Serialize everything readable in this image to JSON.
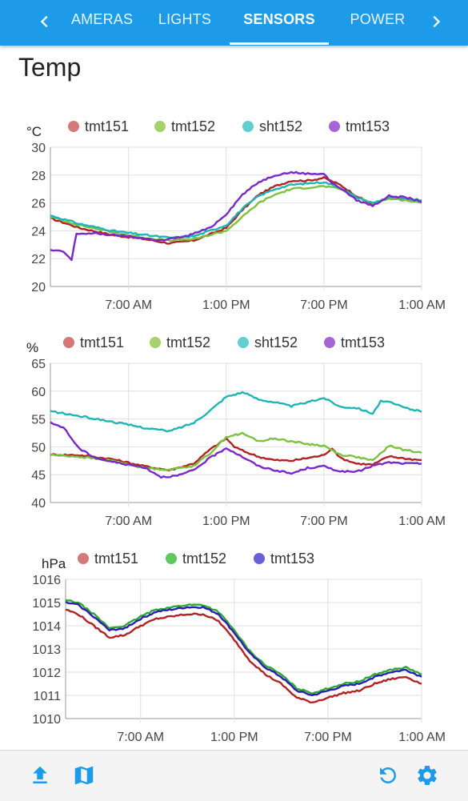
{
  "tabs": {
    "items": [
      "CAMERAS",
      "LIGHTS",
      "SENSORS",
      "POWER"
    ],
    "active_index": 2
  },
  "page": {
    "title": "Temp"
  },
  "colors": {
    "tab_bar": "#1e9be8",
    "icon": "#1e9be8",
    "tmt151": "#d47878",
    "tmt151_line": "#b22222",
    "tmt152": "#a6d16c",
    "tmt152_line": "#7cc13f",
    "sht152": "#5fcfcf",
    "sht152_line": "#1fb5b5",
    "tmt153": "#a565d6",
    "tmt153_line": "#7a28c8",
    "tmt152_pressure": "#5dc85d",
    "tmt152_pressure_line": "#2ea832",
    "tmt153_pressure": "#6b5fd6",
    "tmt153_pressure_line": "#2a1fb0"
  },
  "bottom_bar": {
    "left_icons": [
      "upload-icon",
      "map-icon"
    ],
    "right_icons": [
      "refresh-icon",
      "settings-icon"
    ]
  },
  "chart_data": [
    {
      "type": "line",
      "unit": "°C",
      "ylim": [
        20,
        30
      ],
      "yticks": [
        "30",
        "28",
        "26",
        "24",
        "22",
        "20"
      ],
      "xticks": [
        "7:00 AM",
        "1:00 PM",
        "7:00 PM",
        "1:00 AM"
      ],
      "x_hours": [
        2.2,
        7.0,
        13.0,
        19.0,
        1.0
      ],
      "grid": true,
      "legend_position": "top",
      "series": [
        {
          "name": "tmt151",
          "color_key": "tmt151",
          "points": [
            [
              2.2,
              24.9
            ],
            [
              4,
              24.2
            ],
            [
              6,
              23.7
            ],
            [
              8,
              23.4
            ],
            [
              9.5,
              23.1
            ],
            [
              11,
              23.3
            ],
            [
              13,
              24.2
            ],
            [
              14,
              25.5
            ],
            [
              15,
              26.6
            ],
            [
              16,
              27.2
            ],
            [
              17,
              27.6
            ],
            [
              18,
              27.6
            ],
            [
              19,
              27.8
            ],
            [
              20,
              27.3
            ],
            [
              21,
              26.5
            ],
            [
              22,
              25.9
            ],
            [
              23,
              26.4
            ],
            [
              24,
              26.3
            ],
            [
              25,
              26.0
            ]
          ]
        },
        {
          "name": "tmt152",
          "color_key": "tmt152",
          "points": [
            [
              2.2,
              25.0
            ],
            [
              4,
              24.4
            ],
            [
              6,
              23.9
            ],
            [
              8,
              23.5
            ],
            [
              9.5,
              23.3
            ],
            [
              11,
              23.4
            ],
            [
              13,
              24.0
            ],
            [
              14,
              25.0
            ],
            [
              15,
              26.0
            ],
            [
              16,
              26.6
            ],
            [
              17,
              27.0
            ],
            [
              18,
              27.1
            ],
            [
              19,
              27.2
            ],
            [
              20,
              27.0
            ],
            [
              21,
              26.4
            ],
            [
              22,
              26.0
            ],
            [
              23,
              26.3
            ],
            [
              24,
              26.2
            ],
            [
              25,
              26.0
            ]
          ]
        },
        {
          "name": "sht152",
          "color_key": "sht152",
          "points": [
            [
              2.2,
              25.1
            ],
            [
              4,
              24.5
            ],
            [
              6,
              24.0
            ],
            [
              8,
              23.7
            ],
            [
              9.5,
              23.5
            ],
            [
              11,
              23.6
            ],
            [
              13,
              24.4
            ],
            [
              14,
              25.6
            ],
            [
              15,
              26.5
            ],
            [
              16,
              27.0
            ],
            [
              17,
              27.3
            ],
            [
              18,
              27.4
            ],
            [
              19,
              27.5
            ],
            [
              20,
              27.1
            ],
            [
              21,
              26.4
            ],
            [
              22,
              26.0
            ],
            [
              23,
              26.4
            ],
            [
              24,
              26.3
            ],
            [
              25,
              26.2
            ]
          ]
        },
        {
          "name": "tmt153",
          "color_key": "tmt153",
          "points": [
            [
              2.2,
              22.6
            ],
            [
              3,
              22.5
            ],
            [
              3.5,
              21.9
            ],
            [
              3.8,
              23.8
            ],
            [
              5,
              23.8
            ],
            [
              7,
              23.6
            ],
            [
              9,
              23.3
            ],
            [
              10.5,
              23.6
            ],
            [
              12,
              24.2
            ],
            [
              13,
              25.2
            ],
            [
              14,
              26.6
            ],
            [
              15,
              27.5
            ],
            [
              16,
              28.0
            ],
            [
              17,
              28.2
            ],
            [
              18,
              28.1
            ],
            [
              19,
              28.1
            ],
            [
              19.5,
              27.4
            ],
            [
              20,
              27.1
            ],
            [
              21,
              26.2
            ],
            [
              22,
              25.8
            ],
            [
              23,
              26.5
            ],
            [
              24,
              26.4
            ],
            [
              25,
              26.1
            ]
          ]
        }
      ]
    },
    {
      "type": "line",
      "unit": "%",
      "ylim": [
        40,
        65
      ],
      "yticks": [
        "65",
        "60",
        "55",
        "50",
        "45",
        "40"
      ],
      "xticks": [
        "7:00 AM",
        "1:00 PM",
        "7:00 PM",
        "1:00 AM"
      ],
      "x_hours": [
        2.2,
        7.0,
        13.0,
        19.0,
        1.0
      ],
      "grid": true,
      "legend_position": "top",
      "series": [
        {
          "name": "tmt151",
          "color_key": "tmt151",
          "points": [
            [
              2.2,
              48.6
            ],
            [
              4,
              48.5
            ],
            [
              6,
              47.8
            ],
            [
              8,
              46.5
            ],
            [
              9.5,
              45.8
            ],
            [
              11,
              47.0
            ],
            [
              12,
              49.5
            ],
            [
              13,
              51.5
            ],
            [
              13.5,
              50.0
            ],
            [
              14,
              49.3
            ],
            [
              15,
              48.2
            ],
            [
              16,
              47.6
            ],
            [
              17,
              47.5
            ],
            [
              18,
              48.0
            ],
            [
              19,
              48.5
            ],
            [
              19.5,
              49.8
            ],
            [
              20,
              48.0
            ],
            [
              21,
              47.0
            ],
            [
              22,
              46.8
            ],
            [
              23,
              48.3
            ],
            [
              24,
              47.9
            ],
            [
              25,
              47.6
            ]
          ]
        },
        {
          "name": "tmt152",
          "color_key": "tmt152",
          "points": [
            [
              2.2,
              48.6
            ],
            [
              4,
              48.2
            ],
            [
              6,
              47.5
            ],
            [
              8,
              46.2
            ],
            [
              9.5,
              45.9
            ],
            [
              11,
              46.6
            ],
            [
              12,
              48.8
            ],
            [
              13,
              51.8
            ],
            [
              14,
              52.4
            ],
            [
              15,
              51.0
            ],
            [
              16,
              51.5
            ],
            [
              17,
              51.0
            ],
            [
              18,
              50.5
            ],
            [
              19,
              50.2
            ],
            [
              20,
              48.6
            ],
            [
              21,
              48.2
            ],
            [
              22,
              47.5
            ],
            [
              23,
              50.2
            ],
            [
              24,
              49.4
            ],
            [
              25,
              48.9
            ]
          ]
        },
        {
          "name": "sht152",
          "color_key": "sht152",
          "points": [
            [
              2.2,
              56.4
            ],
            [
              4,
              55.5
            ],
            [
              6,
              54.5
            ],
            [
              8,
              53.4
            ],
            [
              9.5,
              52.8
            ],
            [
              11,
              54.3
            ],
            [
              12,
              56.5
            ],
            [
              13,
              59.0
            ],
            [
              14,
              59.8
            ],
            [
              15,
              58.5
            ],
            [
              16,
              58.0
            ],
            [
              17,
              57.3
            ],
            [
              18,
              58.0
            ],
            [
              19,
              58.8
            ],
            [
              20,
              57.2
            ],
            [
              21,
              57.0
            ],
            [
              22,
              56.0
            ],
            [
              22.5,
              58.2
            ],
            [
              23,
              58.0
            ],
            [
              24,
              57.0
            ],
            [
              25,
              56.3
            ]
          ]
        },
        {
          "name": "tmt153",
          "color_key": "tmt153",
          "points": [
            [
              2.2,
              54.3
            ],
            [
              3,
              53.5
            ],
            [
              3.5,
              51.5
            ],
            [
              4,
              49.6
            ],
            [
              5,
              48.0
            ],
            [
              6,
              47.3
            ],
            [
              8,
              46.3
            ],
            [
              9,
              44.6
            ],
            [
              10,
              44.8
            ],
            [
              11,
              45.8
            ],
            [
              12,
              48.0
            ],
            [
              13,
              49.8
            ],
            [
              14,
              48.2
            ],
            [
              15,
              46.5
            ],
            [
              16,
              45.8
            ],
            [
              17,
              45.2
            ],
            [
              18,
              46.2
            ],
            [
              19,
              46.5
            ],
            [
              20,
              45.6
            ],
            [
              21,
              45.5
            ],
            [
              22,
              46.6
            ],
            [
              23,
              47.2
            ],
            [
              24,
              47.0
            ],
            [
              25,
              47.0
            ]
          ]
        }
      ]
    },
    {
      "type": "line",
      "unit": "hPa",
      "ylim": [
        1010,
        1016
      ],
      "yticks": [
        "1016",
        "1015",
        "1014",
        "1013",
        "1012",
        "1011",
        "1010"
      ],
      "xticks": [
        "7:00 AM",
        "1:00 PM",
        "7:00 PM",
        "1:00 AM"
      ],
      "x_hours": [
        2.2,
        7.0,
        13.0,
        19.0,
        1.0
      ],
      "grid": true,
      "legend_position": "top",
      "series": [
        {
          "name": "tmt151",
          "color_key": "tmt151",
          "points": [
            [
              2.2,
              1014.7
            ],
            [
              3,
              1014.5
            ],
            [
              4,
              1014.0
            ],
            [
              5,
              1013.5
            ],
            [
              6,
              1013.6
            ],
            [
              7,
              1014.0
            ],
            [
              8,
              1014.3
            ],
            [
              9,
              1014.4
            ],
            [
              10,
              1014.5
            ],
            [
              11,
              1014.5
            ],
            [
              12,
              1014.2
            ],
            [
              13,
              1013.4
            ],
            [
              14,
              1012.5
            ],
            [
              15,
              1011.9
            ],
            [
              16,
              1011.5
            ],
            [
              17,
              1010.9
            ],
            [
              18,
              1010.7
            ],
            [
              19,
              1010.9
            ],
            [
              20,
              1011.1
            ],
            [
              21,
              1011.2
            ],
            [
              22,
              1011.5
            ],
            [
              23,
              1011.7
            ],
            [
              24,
              1011.8
            ],
            [
              25,
              1011.5
            ]
          ]
        },
        {
          "name": "tmt152",
          "color_key": "tmt152_pressure",
          "points": [
            [
              2.2,
              1015.1
            ],
            [
              3,
              1015.0
            ],
            [
              4,
              1014.5
            ],
            [
              5,
              1013.9
            ],
            [
              6,
              1014.0
            ],
            [
              7,
              1014.4
            ],
            [
              8,
              1014.7
            ],
            [
              9,
              1014.8
            ],
            [
              10,
              1014.9
            ],
            [
              11,
              1014.9
            ],
            [
              12,
              1014.6
            ],
            [
              13,
              1013.8
            ],
            [
              14,
              1012.9
            ],
            [
              15,
              1012.3
            ],
            [
              16,
              1011.9
            ],
            [
              17,
              1011.3
            ],
            [
              18,
              1011.1
            ],
            [
              19,
              1011.3
            ],
            [
              20,
              1011.5
            ],
            [
              21,
              1011.6
            ],
            [
              22,
              1011.9
            ],
            [
              23,
              1012.1
            ],
            [
              24,
              1012.2
            ],
            [
              25,
              1011.9
            ]
          ]
        },
        {
          "name": "tmt153",
          "color_key": "tmt153_pressure",
          "points": [
            [
              2.2,
              1015.0
            ],
            [
              3,
              1014.9
            ],
            [
              4,
              1014.4
            ],
            [
              5,
              1013.8
            ],
            [
              6,
              1013.9
            ],
            [
              7,
              1014.3
            ],
            [
              8,
              1014.6
            ],
            [
              9,
              1014.7
            ],
            [
              10,
              1014.8
            ],
            [
              11,
              1014.8
            ],
            [
              12,
              1014.5
            ],
            [
              13,
              1013.7
            ],
            [
              14,
              1012.8
            ],
            [
              15,
              1012.2
            ],
            [
              16,
              1011.8
            ],
            [
              17,
              1011.2
            ],
            [
              18,
              1011.0
            ],
            [
              19,
              1011.2
            ],
            [
              20,
              1011.4
            ],
            [
              21,
              1011.5
            ],
            [
              22,
              1011.8
            ],
            [
              23,
              1012.0
            ],
            [
              24,
              1012.1
            ],
            [
              25,
              1011.8
            ]
          ]
        }
      ]
    }
  ]
}
